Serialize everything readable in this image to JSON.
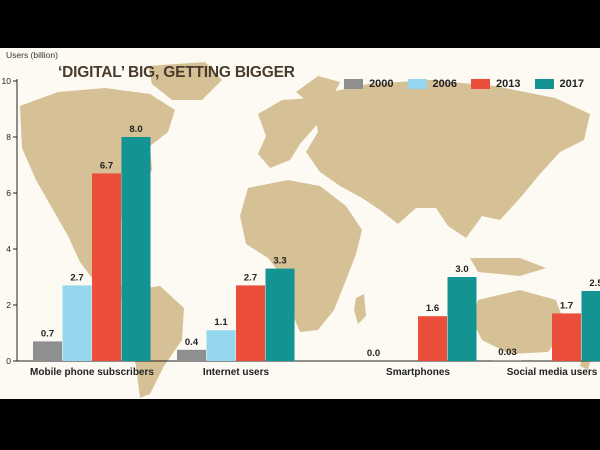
{
  "chart_data": {
    "type": "bar",
    "title": "‘DIGITAL’ BIG, GETTING BIGGER",
    "ylabel": "Users (billion)",
    "xlabel": "",
    "ylim": [
      0,
      10
    ],
    "yticks": [
      0,
      2,
      4,
      6,
      8,
      10
    ],
    "categories": [
      "Mobile phone subscribers",
      "Internet users",
      "Smartphones",
      "Social media users"
    ],
    "series": [
      {
        "name": "2000",
        "color": "#8f8f8f",
        "values": [
          0.7,
          0.4,
          0.0,
          0.03
        ],
        "labels": [
          "0.7",
          "0.4",
          "0.0",
          "0.03"
        ]
      },
      {
        "name": "2006",
        "color": "#95d7ee",
        "values": [
          2.7,
          1.1,
          null,
          null
        ],
        "labels": [
          "2.7",
          "1.1",
          "",
          ""
        ]
      },
      {
        "name": "2013",
        "color": "#eb4f3c",
        "values": [
          6.7,
          2.7,
          1.6,
          1.7
        ],
        "labels": [
          "6.7",
          "2.7",
          "1.6",
          "1.7"
        ]
      },
      {
        "name": "2017",
        "color": "#139391",
        "values": [
          8.0,
          3.3,
          3.0,
          2.5
        ],
        "labels": [
          "8.0",
          "3.3",
          "3.0",
          "2.5"
        ]
      }
    ],
    "grid": false,
    "legend": "top-right",
    "background": "world map"
  }
}
